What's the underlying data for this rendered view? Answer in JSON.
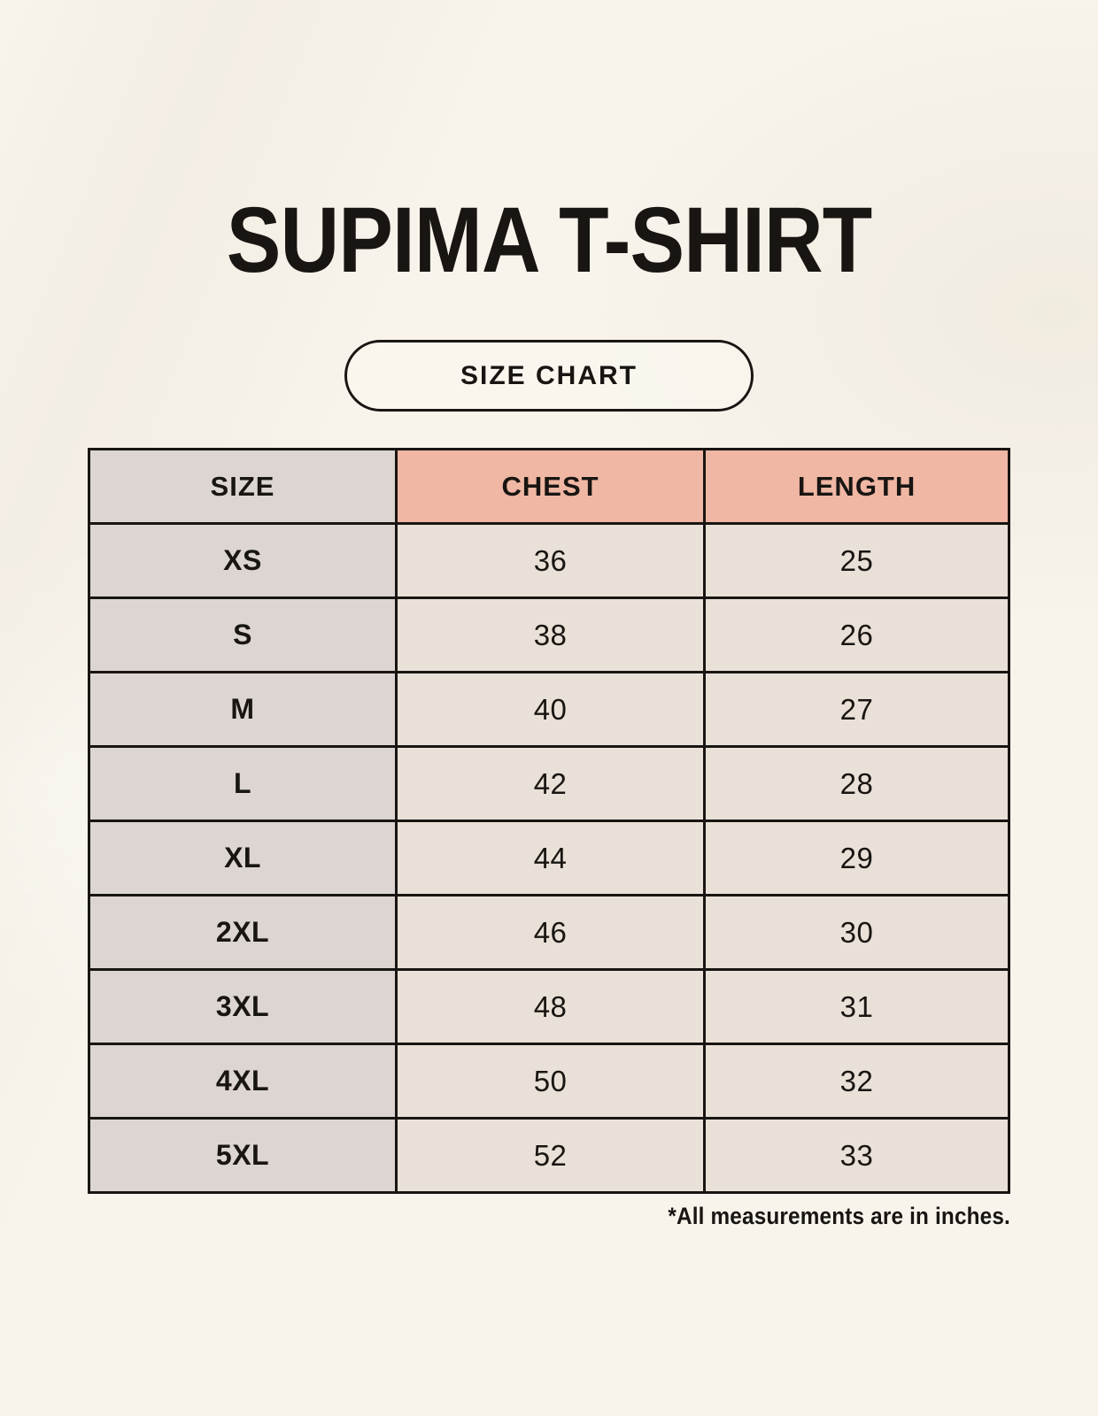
{
  "header": {
    "title": "SUPIMA T-SHIRT",
    "badge_label": "SIZE CHART"
  },
  "footnote": "*All measurements are in inches.",
  "chart_data": {
    "type": "table",
    "title": "SUPIMA T-SHIRT SIZE CHART",
    "columns": [
      "SIZE",
      "CHEST",
      "LENGTH"
    ],
    "rows": [
      {
        "size": "XS",
        "chest": "36",
        "length": "25"
      },
      {
        "size": "S",
        "chest": "38",
        "length": "26"
      },
      {
        "size": "M",
        "chest": "40",
        "length": "27"
      },
      {
        "size": "L",
        "chest": "42",
        "length": "28"
      },
      {
        "size": "XL",
        "chest": "44",
        "length": "29"
      },
      {
        "size": "2XL",
        "chest": "46",
        "length": "30"
      },
      {
        "size": "3XL",
        "chest": "48",
        "length": "31"
      },
      {
        "size": "4XL",
        "chest": "50",
        "length": "32"
      },
      {
        "size": "5XL",
        "chest": "52",
        "length": "33"
      }
    ],
    "units": "inches"
  },
  "colors": {
    "page_background": "#f8f4ec",
    "size_column_background": "#dcd5d2",
    "header_accent_background": "#f0b7a4",
    "cell_background": "#e9e1d7",
    "border": "#181512",
    "text": "#181512"
  }
}
